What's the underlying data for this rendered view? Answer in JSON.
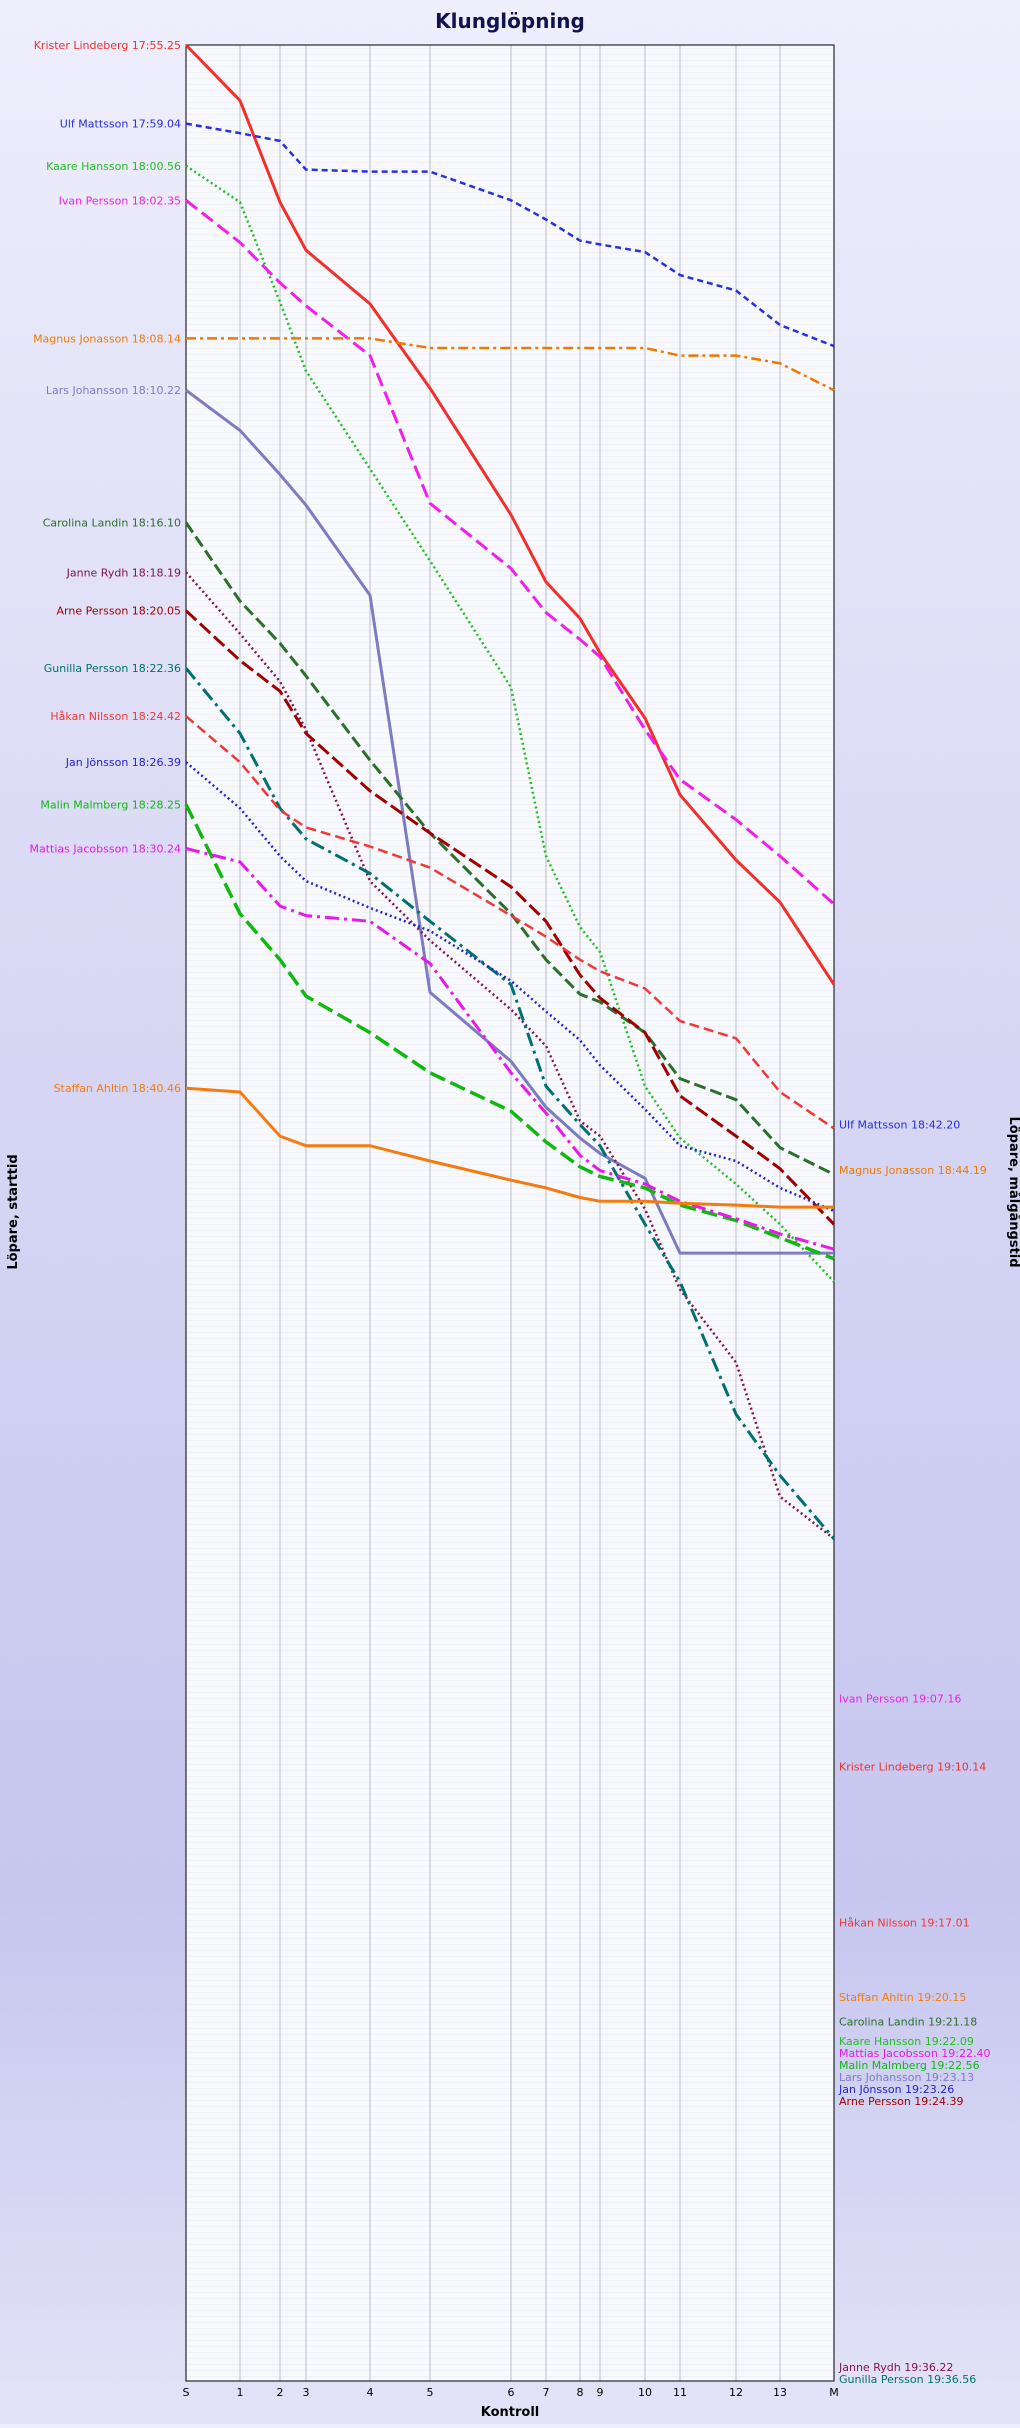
{
  "chart_data": {
    "type": "line",
    "title": "Klunglöpning",
    "xlabel": "Kontroll",
    "ylabel_left": "Löpare, starttid",
    "ylabel_right": "Löpare, målgångstid",
    "y_axis": "clock time, increasing downward",
    "ylim": [
      "17:55:25",
      "19:36:56"
    ],
    "grid": true,
    "x_ticks": [
      "S",
      "1",
      "2",
      "3",
      "4",
      "5",
      "6",
      "7",
      "8",
      "9",
      "10",
      "11",
      "12",
      "13",
      "M"
    ],
    "series": [
      {
        "name": "Krister Lindeberg",
        "start_label": "Krister Lindeberg 17:55.25",
        "finish_label": "Krister Lindeberg 19:10.14",
        "color": "#f0302c",
        "dash": "solid",
        "width": 3,
        "times": [
          "17:55:25",
          "17:57:50",
          "18:02:15",
          "18:04:20",
          "18:06:40",
          "18:10:20",
          "18:15:50",
          "18:18:45",
          "18:20:20",
          "18:21:50",
          "18:24:40",
          "18:28:00",
          "18:30:50",
          "18:32:40",
          "18:36:15"
        ]
      },
      {
        "name": "Ulf Mattsson",
        "start_label": "Ulf Mattsson 17:59.04",
        "finish_label": "Ulf Mattsson 18:42.20",
        "color": "#2830e0",
        "dash": "6,4",
        "width": 2.5,
        "times": [
          "17:58:50",
          "17:59:15",
          "17:59:35",
          "18:00:50",
          "18:00:55",
          "18:00:55",
          "18:02:10",
          "18:03:00",
          "18:03:55",
          "18:04:05",
          "18:04:25",
          "18:05:25",
          "18:06:05",
          "18:07:35",
          "18:08:30"
        ]
      },
      {
        "name": "Kaare Hansson",
        "start_label": "Kaare Hansson 18:00.56",
        "finish_label": "Kaare Hansson 19:22.09",
        "color": "#20c020",
        "dash": "2,3",
        "width": 2.5,
        "times": [
          "18:00:40",
          "18:02:15",
          "18:06:35",
          "18:09:35",
          "18:13:50",
          "18:17:50",
          "18:23:20",
          "18:30:40",
          "18:33:45",
          "18:34:50",
          "18:40:40",
          "18:42:55",
          "18:44:55",
          "18:46:40",
          "18:49:10"
        ]
      },
      {
        "name": "Ivan Persson",
        "start_label": "Ivan Persson 18:02.35",
        "finish_label": "Ivan Persson 19:07.16",
        "color": "#f020e8",
        "dash": "14,6",
        "width": 3,
        "times": [
          "18:02:10",
          "18:04:00",
          "18:05:45",
          "18:06:45",
          "18:08:55",
          "18:15:20",
          "18:18:10",
          "18:20:05",
          "18:21:15",
          "18:22:00",
          "18:25:10",
          "18:27:20",
          "18:29:05",
          "18:30:40",
          "18:32:45"
        ]
      },
      {
        "name": "Magnus Jonasson",
        "start_label": "Magnus Jonasson 18:08.14",
        "finish_label": "Magnus Jonasson 18:44.19",
        "color": "#f07800",
        "dash": "10,4,3,4",
        "width": 2.5,
        "times": [
          "18:08:10",
          "18:08:10",
          "18:08:10",
          "18:08:10",
          "18:08:10",
          "18:08:35",
          "18:08:35",
          "18:08:35",
          "18:08:35",
          "18:08:35",
          "18:08:35",
          "18:08:55",
          "18:08:55",
          "18:09:15",
          "18:10:25"
        ]
      },
      {
        "name": "Lars Johansson",
        "start_label": "Lars Johansson 18:10.22",
        "finish_label": "Lars Johansson 19:23.13",
        "color": "#7e7cc0",
        "dash": "solid",
        "width": 3,
        "times": [
          "18:10:25",
          "18:12:10",
          "18:14:05",
          "18:15:25",
          "18:19:20",
          "18:36:35",
          "18:39:35",
          "18:41:35",
          "18:42:55",
          "18:43:35",
          "18:44:40",
          "18:47:55",
          "18:47:55",
          "18:47:55",
          "18:47:55"
        ]
      },
      {
        "name": "Carolina Landin",
        "start_label": "Carolina Landin 18:16.10",
        "finish_label": "Carolina Landin 19:21.18",
        "color": "#2c6e2c",
        "dash": "12,5",
        "width": 3,
        "times": [
          "18:16:10",
          "18:19:35",
          "18:21:25",
          "18:22:50",
          "18:26:30",
          "18:29:40",
          "18:33:10",
          "18:35:10",
          "18:36:40",
          "18:37:00",
          "18:38:20",
          "18:40:20",
          "18:41:15",
          "18:43:20",
          "18:44:30"
        ]
      },
      {
        "name": "Janne Rydh",
        "start_label": "Janne Rydh 18:18.19",
        "finish_label": "Janne Rydh 19:36.22",
        "color": "#84144a",
        "dash": "2,3",
        "width": 2.5,
        "times": [
          "18:18:20",
          "18:21:00",
          "18:23:05",
          "18:25:10",
          "18:31:45",
          "18:34:20",
          "18:37:20",
          "18:38:55",
          "18:42:10",
          "18:42:50",
          "18:46:00",
          "18:49:30",
          "18:52:40",
          "18:58:30",
          "19:00:20"
        ]
      },
      {
        "name": "Arne Persson",
        "start_label": "Arne Persson 18:20.05",
        "finish_label": "Arne Persson 19:24.39",
        "color": "#a00000",
        "dash": "14,5",
        "width": 3,
        "times": [
          "18:20:00",
          "18:22:10",
          "18:23:30",
          "18:25:20",
          "18:27:50",
          "18:29:40",
          "18:32:00",
          "18:33:30",
          "18:35:50",
          "18:36:50",
          "18:38:20",
          "18:41:05",
          "18:42:50",
          "18:44:15",
          "18:46:40"
        ]
      },
      {
        "name": "Gunilla Persson",
        "start_label": "Gunilla Persson 18:22.36",
        "finish_label": "Gunilla Persson 19:36.56",
        "color": "#007070",
        "dash": "14,5,3,5",
        "width": 3,
        "times": [
          "18:22:30",
          "18:25:20",
          "18:28:35",
          "18:29:55",
          "18:31:25",
          "18:33:30",
          "18:36:15",
          "18:40:40",
          "18:42:20",
          "18:43:15",
          "18:46:40",
          "18:49:10",
          "18:54:55",
          "18:57:35",
          "19:00:20"
        ]
      },
      {
        "name": "Håkan Nilsson",
        "start_label": "Håkan Nilsson 18:24.42",
        "finish_label": "Håkan Nilsson 19:17.01",
        "color": "#f03838",
        "dash": "10,5",
        "width": 2.5,
        "times": [
          "18:24:35",
          "18:26:35",
          "18:28:40",
          "18:29:25",
          "18:30:15",
          "18:31:10",
          "18:33:15",
          "18:34:10",
          "18:35:10",
          "18:35:40",
          "18:36:25",
          "18:37:50",
          "18:38:35",
          "18:40:55",
          "18:42:30"
        ]
      },
      {
        "name": "Jan Jönsson",
        "start_label": "Jan Jönsson 18:26.39",
        "finish_label": "Jan Jönsson 19:23.26",
        "color": "#2424d0",
        "dash": "2,3",
        "width": 2.5,
        "times": [
          "18:26:35",
          "18:28:35",
          "18:30:40",
          "18:31:45",
          "18:32:55",
          "18:33:55",
          "18:36:05",
          "18:37:25",
          "18:38:40",
          "18:39:45",
          "18:41:40",
          "18:43:15",
          "18:43:55",
          "18:45:05",
          "18:46:05"
        ]
      },
      {
        "name": "Malin Malmberg",
        "start_label": "Malin Malmberg 18:28.25",
        "finish_label": "Malin Malmberg 19:22.56",
        "color": "#10b810",
        "dash": "16,6",
        "width": 3.5,
        "times": [
          "18:28:25",
          "18:33:10",
          "18:35:10",
          "18:36:45",
          "18:38:20",
          "18:40:05",
          "18:41:45",
          "18:43:05",
          "18:44:10",
          "18:44:35",
          "18:45:05",
          "18:45:50",
          "18:46:30",
          "18:47:15",
          "18:48:10"
        ]
      },
      {
        "name": "Mattias Jacobsson",
        "start_label": "Mattias Jacobsson 18:30.24",
        "finish_label": "Mattias Jacobsson 19:22.40",
        "color": "#e818e8",
        "dash": "14,5,3,5",
        "width": 3,
        "times": [
          "18:30:20",
          "18:30:55",
          "18:32:50",
          "18:33:15",
          "18:33:30",
          "18:35:20",
          "18:40:05",
          "18:41:50",
          "18:43:40",
          "18:44:20",
          "18:44:55",
          "18:45:40",
          "18:46:25",
          "18:47:05",
          "18:47:45"
        ]
      },
      {
        "name": "Staffan Ahltin",
        "start_label": "Staffan Ahltin 18:40.46",
        "finish_label": "Staffan Ahltin 19:20.15",
        "color": "#f57a10",
        "dash": "solid",
        "width": 3,
        "times": [
          "18:40:45",
          "18:40:55",
          "18:42:50",
          "18:43:15",
          "18:43:15",
          "18:43:55",
          "18:44:45",
          "18:45:05",
          "18:45:30",
          "18:45:40",
          "18:45:40",
          "18:45:45",
          "18:45:50",
          "18:45:55",
          "18:45:55"
        ]
      }
    ]
  }
}
